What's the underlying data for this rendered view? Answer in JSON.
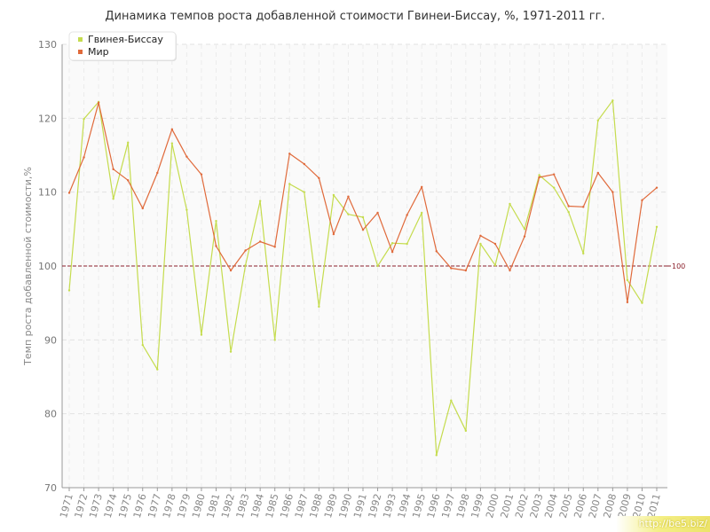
{
  "chart_data": {
    "type": "line",
    "title": "Динамика темпов роста добавленной стоимости Гвинеи-Биссау, %, 1971-2011 гг.",
    "ylabel": "Темп роста добавленной стоимости,%",
    "xlabel": "",
    "ylim": [
      70,
      130
    ],
    "yticks": [
      70,
      80,
      90,
      100,
      110,
      120,
      130
    ],
    "grid": true,
    "legend_position": "top-left",
    "reference_line": {
      "value": 100,
      "label": "100",
      "color": "#8a1f2a"
    },
    "x": [
      "1971",
      "1972",
      "1973",
      "1974",
      "1975",
      "1976",
      "1977",
      "1978",
      "1979",
      "1980",
      "1981",
      "1982",
      "1983",
      "1984",
      "1985",
      "1986",
      "1987",
      "1988",
      "1989",
      "1990",
      "1991",
      "1992",
      "1993",
      "1994",
      "1995",
      "1996",
      "1997",
      "1998",
      "1999",
      "2000",
      "2001",
      "2002",
      "2003",
      "2004",
      "2005",
      "2006",
      "2007",
      "2008",
      "2009",
      "2010",
      "2011"
    ],
    "series": [
      {
        "name": "Гвинея-Биссау",
        "color": "#c5dc4e",
        "values": [
          96.7,
          119.9,
          122.2,
          109.1,
          116.7,
          89.3,
          86.0,
          116.6,
          107.6,
          90.7,
          106.1,
          88.4,
          100.1,
          108.8,
          90.0,
          111.1,
          110.0,
          94.5,
          109.6,
          107.0,
          106.6,
          100.0,
          103.1,
          103.0,
          107.2,
          74.4,
          81.8,
          77.7,
          103.0,
          100.1,
          108.4,
          105.0,
          112.3,
          110.6,
          107.3,
          101.7,
          119.7,
          122.4,
          98.1,
          95.0,
          105.3
        ]
      },
      {
        "name": "Мир",
        "color": "#e06a3b",
        "values": [
          109.9,
          114.7,
          122.1,
          113.1,
          111.6,
          107.8,
          112.6,
          118.5,
          114.8,
          112.4,
          102.7,
          99.4,
          102.1,
          103.3,
          102.6,
          115.2,
          113.8,
          111.9,
          104.3,
          109.4,
          104.9,
          107.2,
          101.9,
          106.9,
          110.7,
          102.0,
          99.7,
          99.4,
          104.1,
          103.0,
          99.4,
          104.0,
          112.0,
          112.4,
          108.1,
          108.0,
          112.6,
          110.0,
          95.1,
          108.9,
          110.6
        ]
      }
    ]
  },
  "watermark": "http://be5.biz/"
}
